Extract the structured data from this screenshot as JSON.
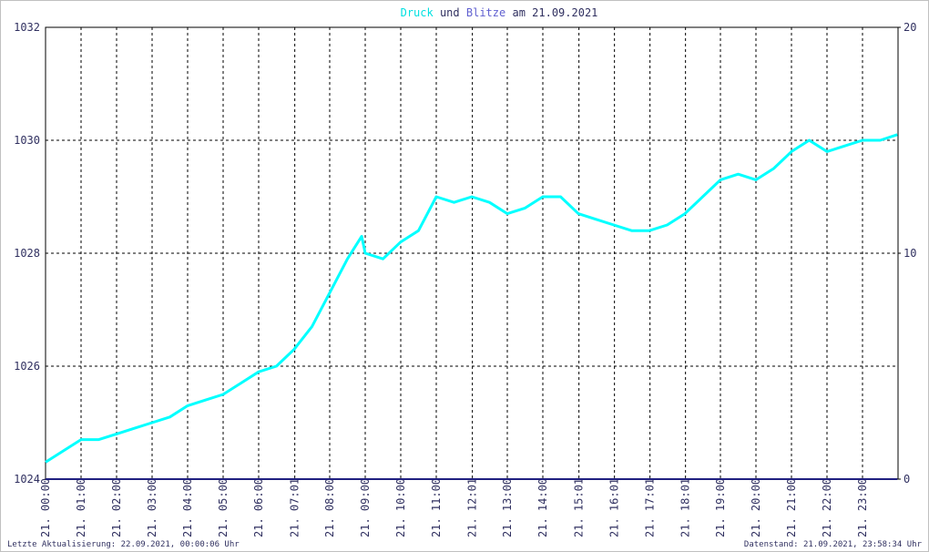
{
  "chart_data": {
    "type": "line",
    "title": [
      "und",
      "am 21.09.2021"
    ],
    "xlim": [
      0,
      24
    ],
    "xticks": [
      {
        "value": 0,
        "label": "21. 00:00"
      },
      {
        "value": 1,
        "label": "21. 01:00"
      },
      {
        "value": 2,
        "label": "21. 02:00"
      },
      {
        "value": 3,
        "label": "21. 03:00"
      },
      {
        "value": 4,
        "label": "21. 04:00"
      },
      {
        "value": 5,
        "label": "21. 05:00"
      },
      {
        "value": 6,
        "label": "21. 06:00"
      },
      {
        "value": 7.0167,
        "label": "21. 07:01"
      },
      {
        "value": 8,
        "label": "21. 08:00"
      },
      {
        "value": 9,
        "label": "21. 09:00"
      },
      {
        "value": 10,
        "label": "21. 10:00"
      },
      {
        "value": 11,
        "label": "21. 11:00"
      },
      {
        "value": 12.0167,
        "label": "21. 12:01"
      },
      {
        "value": 13,
        "label": "21. 13:00"
      },
      {
        "value": 14,
        "label": "21. 14:00"
      },
      {
        "value": 15.0167,
        "label": "21. 15:01"
      },
      {
        "value": 16.0167,
        "label": "21. 16:01"
      },
      {
        "value": 17.0167,
        "label": "21. 17:01"
      },
      {
        "value": 18.0167,
        "label": "21. 18:01"
      },
      {
        "value": 19,
        "label": "21. 19:00"
      },
      {
        "value": 20,
        "label": "21. 20:00"
      },
      {
        "value": 21,
        "label": "21. 21:00"
      },
      {
        "value": 22,
        "label": "21. 22:00"
      },
      {
        "value": 23,
        "label": "21. 23:00"
      }
    ],
    "ylim": [
      1024,
      1032
    ],
    "yticks": [
      1024,
      1026,
      1028,
      1030,
      1032
    ],
    "y2lim": [
      0,
      20
    ],
    "y2ticks": [
      0,
      10,
      20
    ],
    "grid": true,
    "x": [
      0,
      0.5,
      1,
      1.5,
      2,
      2.5,
      3,
      3.5,
      4,
      4.5,
      5,
      5.5,
      6,
      6.5,
      7,
      7.5,
      8,
      8.5,
      8.9,
      9,
      9.5,
      10,
      10.5,
      11,
      11.5,
      12,
      12.5,
      13,
      13.5,
      14,
      14.5,
      15,
      15.5,
      16,
      16.5,
      17,
      17.5,
      18,
      18.5,
      19,
      19.5,
      20,
      20.5,
      21,
      21.5,
      22,
      22.5,
      23,
      23.5,
      23.98
    ],
    "series": [
      {
        "name": "Druck",
        "color": "#00ffff",
        "values": [
          1024.3,
          1024.5,
          1024.7,
          1024.7,
          1024.8,
          1024.9,
          1025.0,
          1025.1,
          1025.3,
          1025.4,
          1025.5,
          1025.7,
          1025.9,
          1026.0,
          1026.3,
          1026.7,
          1027.3,
          1027.9,
          1028.3,
          1028.0,
          1027.9,
          1028.2,
          1028.4,
          1029.0,
          1028.9,
          1029.0,
          1028.9,
          1028.7,
          1028.8,
          1029.0,
          1029.0,
          1028.7,
          1028.6,
          1028.5,
          1028.4,
          1028.4,
          1028.5,
          1028.7,
          1029.0,
          1029.3,
          1029.4,
          1029.3,
          1029.5,
          1029.8,
          1030.0,
          1029.8,
          1029.9,
          1030.0,
          1030.0,
          1030.1
        ]
      },
      {
        "name": "Blitze",
        "color": "#202080",
        "axis": "y2",
        "values": [
          0,
          0,
          0,
          0,
          0,
          0,
          0,
          0,
          0,
          0,
          0,
          0,
          0,
          0,
          0,
          0,
          0,
          0,
          0,
          0,
          0,
          0,
          0,
          0,
          0,
          0,
          0,
          0,
          0,
          0,
          0,
          0,
          0,
          0,
          0,
          0,
          0,
          0,
          0,
          0,
          0,
          0,
          0,
          0,
          0,
          0,
          0,
          0,
          0,
          0
        ]
      }
    ],
    "footer": {
      "left": "Letzte Aktualisierung: 22.09.2021, 00:00:06 Uhr",
      "right": "Datenstand: 21.09.2021, 23:58:34 Uhr"
    }
  }
}
